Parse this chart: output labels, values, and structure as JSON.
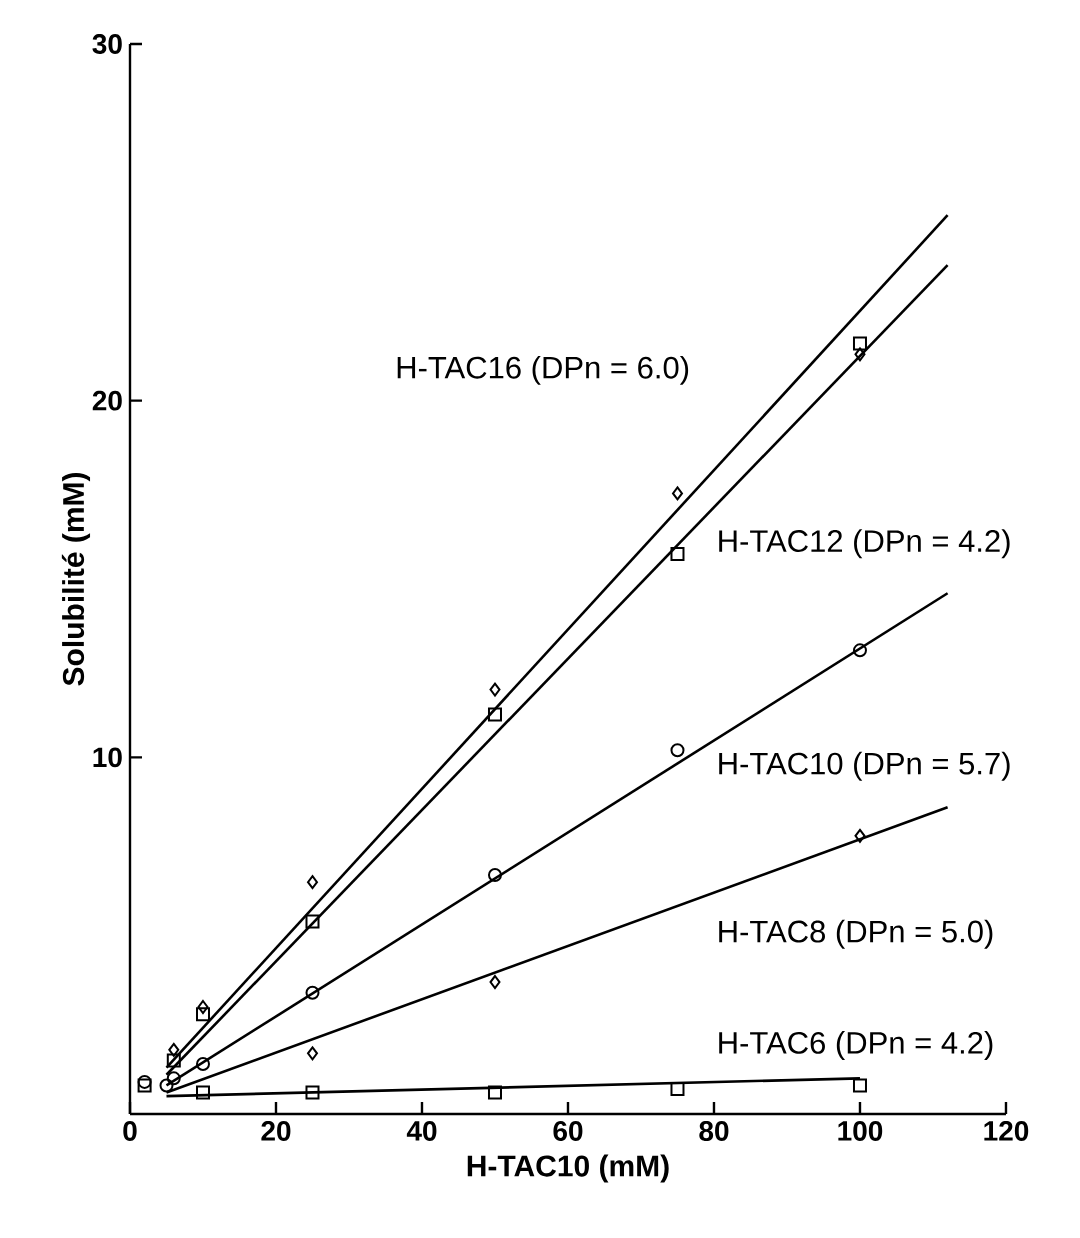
{
  "chart_data": {
    "type": "scatter",
    "xlabel": "H-TAC10 (mM)",
    "ylabel": "Solubilité (mM)",
    "xlim": [
      0,
      120
    ],
    "xticks": [
      0,
      20,
      40,
      60,
      80,
      100,
      120
    ],
    "ylim": [
      0,
      30
    ],
    "yticks": [
      10,
      20,
      30
    ],
    "grid": false,
    "series": [
      {
        "color": "#000000",
        "marker": "diamond",
        "x": [
          6,
          10,
          25,
          50,
          75,
          100
        ],
        "values": [
          1.8,
          3.0,
          6.5,
          11.9,
          17.4,
          21.3
        ]
      },
      {
        "color": "#000000",
        "marker": "square",
        "x": [
          6,
          10,
          25,
          50,
          75,
          100
        ],
        "values": [
          1.5,
          2.8,
          5.4,
          11.2,
          15.7,
          21.6
        ]
      },
      {
        "color": "#000000",
        "marker": "circle",
        "x": [
          2,
          5,
          6,
          10,
          25,
          50,
          75,
          100
        ],
        "values": [
          0.9,
          0.8,
          1.0,
          1.4,
          3.4,
          6.7,
          10.2,
          13.0
        ]
      },
      {
        "color": "#000000",
        "marker": "diamond",
        "x": [
          25,
          50,
          100
        ],
        "values": [
          1.7,
          3.7,
          7.8
        ]
      },
      {
        "color": "#000000",
        "marker": "square",
        "x": [
          2,
          10,
          25,
          50,
          75,
          100
        ],
        "values": [
          0.8,
          0.6,
          0.6,
          0.6,
          0.7,
          0.8
        ]
      },
      {
        "type": "line",
        "color": "#000000",
        "x": [
          5,
          112
        ],
        "values": [
          1.3,
          25.2
        ]
      },
      {
        "type": "line",
        "color": "#000000",
        "x": [
          5,
          112
        ],
        "values": [
          1.1,
          23.8
        ]
      },
      {
        "type": "line",
        "color": "#000000",
        "x": [
          5,
          112
        ],
        "values": [
          0.8,
          14.6
        ]
      },
      {
        "type": "line",
        "color": "#000000",
        "x": [
          5,
          112
        ],
        "values": [
          0.6,
          8.6
        ]
      },
      {
        "type": "line",
        "color": "#000000",
        "x": [
          5,
          100
        ],
        "values": [
          0.5,
          1.0
        ]
      }
    ],
    "annotations": [
      "H-TAC16 (DPn = 6.0)",
      "H-TAC12 (DPn = 4.2)",
      "H-TAC10 (DPn = 5.7)",
      "H-TAC8 (DPn = 5.0)",
      "H-TAC6 (DPn = 4.2)"
    ]
  }
}
